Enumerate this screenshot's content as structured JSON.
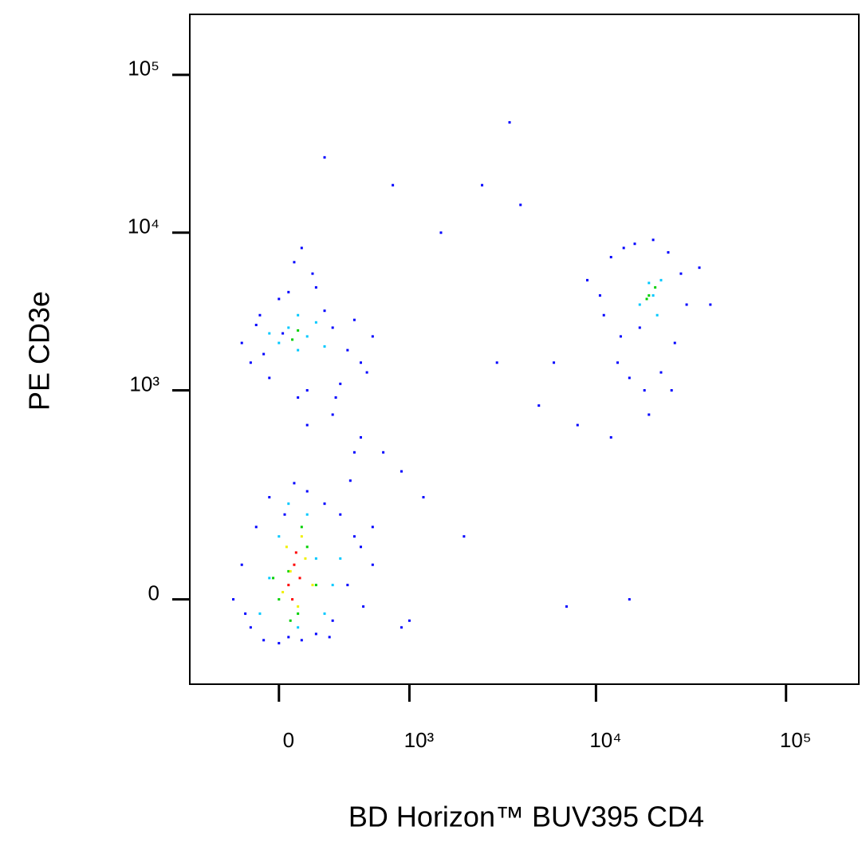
{
  "chart_data": {
    "type": "scatter",
    "x_label": "BD Horizon™ BUV395 CD4",
    "y_label": "PE CD3e",
    "xscale": "biexponential",
    "yscale": "biexponential",
    "xlim": [
      -560,
      241500
    ],
    "ylim": [
      -150,
      241700
    ],
    "xticks": [
      0,
      {
        "value": 1000,
        "label": "10³"
      },
      {
        "value": 10000,
        "label": "10⁴"
      },
      {
        "value": 100000,
        "label": "10⁵"
      }
    ],
    "yticks": [
      0,
      {
        "value": 1000,
        "label": "10³"
      },
      {
        "value": 10000,
        "label": "10⁴"
      },
      {
        "value": 100000,
        "label": "10⁵"
      }
    ],
    "series": [
      {
        "color": "#0000ff",
        "x": [
          -250,
          -150,
          -80,
          -200,
          0,
          50,
          120,
          200,
          300,
          400,
          500,
          -120,
          350,
          450,
          250,
          150,
          -50,
          80,
          -180,
          280,
          520,
          600,
          420,
          30,
          -200,
          -150,
          -100,
          -50,
          0,
          50,
          100,
          150,
          200,
          300,
          400,
          500,
          600,
          -120,
          250,
          350,
          450,
          -80,
          180,
          80,
          550,
          20,
          320,
          120,
          9000,
          11000,
          13000,
          15000,
          18000,
          22000,
          26000,
          30000,
          35000,
          12000,
          14000,
          16000,
          20000,
          24000,
          28000,
          17000,
          10500,
          25000,
          19000,
          13500,
          500,
          700,
          900,
          1200,
          2000,
          3000,
          5000,
          8000,
          150,
          300,
          450,
          800,
          1500,
          4000,
          6000,
          12000,
          3500,
          2500,
          900,
          250,
          600,
          1000,
          7000,
          15000,
          40000
        ],
        "y": [
          0,
          -40,
          -60,
          50,
          -65,
          -55,
          -60,
          -50,
          -30,
          20,
          80,
          120,
          150,
          100,
          180,
          220,
          200,
          250,
          -20,
          -55,
          -10,
          120,
          260,
          150,
          2000,
          1500,
          3000,
          1200,
          3800,
          4200,
          900,
          1000,
          4500,
          2500,
          1800,
          1500,
          2200,
          2600,
          3200,
          1100,
          2800,
          1700,
          5500,
          6500,
          1300,
          2300,
          900,
          8000,
          5000,
          3000,
          1500,
          1200,
          1000,
          1300,
          2000,
          3500,
          6000,
          7000,
          8000,
          8500,
          9000,
          7500,
          5500,
          2500,
          4000,
          1000,
          700,
          2200,
          500,
          400,
          300,
          200,
          100,
          1500,
          800,
          600,
          600,
          700,
          400,
          20000,
          10000,
          15000,
          1500,
          500,
          50000,
          20000,
          -40,
          30000,
          50,
          -30,
          -10,
          0,
          3500
        ]
      },
      {
        "color": "#00c8ff",
        "x": [
          -100,
          0,
          100,
          200,
          300,
          -50,
          250,
          150,
          50,
          350,
          0,
          50,
          100,
          150,
          200,
          -50,
          250,
          100,
          17000,
          20000,
          22000,
          19000,
          21000
        ],
        "y": [
          -20,
          100,
          -40,
          60,
          20,
          30,
          -20,
          150,
          180,
          60,
          2000,
          2500,
          1800,
          2200,
          2700,
          2300,
          1900,
          3000,
          3500,
          4000,
          5000,
          4800,
          3000
        ]
      },
      {
        "color": "#00d000",
        "x": [
          0,
          50,
          100,
          150,
          200,
          -30,
          120,
          60,
          70,
          100,
          19000,
          20500,
          18500
        ],
        "y": [
          0,
          40,
          -20,
          80,
          20,
          30,
          120,
          -30,
          2100,
          2400,
          4000,
          4500,
          3800
        ]
      },
      {
        "color": "#f0f000",
        "x": [
          20,
          60,
          100,
          140,
          180,
          40,
          120
        ],
        "y": [
          10,
          40,
          -10,
          60,
          20,
          80,
          100
        ]
      },
      {
        "color": "#ff0000",
        "x": [
          50,
          80,
          110,
          70,
          90
        ],
        "y": [
          20,
          50,
          30,
          0,
          70
        ]
      }
    ]
  }
}
